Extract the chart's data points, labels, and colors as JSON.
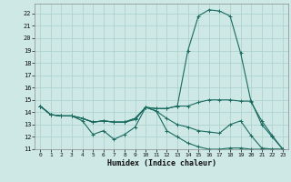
{
  "xlabel": "Humidex (Indice chaleur)",
  "background_color": "#cde8e5",
  "grid_color": "#aacfcc",
  "line_color": "#1a6b60",
  "xlim": [
    -0.5,
    23.5
  ],
  "ylim": [
    11,
    22.8
  ],
  "yticks": [
    11,
    12,
    13,
    14,
    15,
    16,
    17,
    18,
    19,
    20,
    21,
    22
  ],
  "xticks": [
    0,
    1,
    2,
    3,
    4,
    5,
    6,
    7,
    8,
    9,
    10,
    11,
    12,
    13,
    14,
    15,
    16,
    17,
    18,
    19,
    20,
    21,
    22,
    23
  ],
  "series": [
    [
      14.5,
      13.8,
      13.7,
      13.7,
      13.3,
      12.2,
      12.5,
      11.8,
      12.2,
      12.8,
      14.4,
      14.1,
      12.5,
      12.0,
      11.5,
      11.2,
      11.0,
      11.0,
      11.1,
      11.1,
      11.0,
      11.0,
      11.0,
      11.0
    ],
    [
      14.5,
      13.8,
      13.7,
      13.7,
      13.5,
      13.2,
      13.3,
      13.2,
      13.2,
      13.4,
      14.4,
      14.1,
      13.5,
      13.0,
      12.8,
      12.5,
      12.4,
      12.3,
      13.0,
      13.3,
      12.1,
      11.1,
      11.0,
      11.0
    ],
    [
      14.5,
      13.8,
      13.7,
      13.7,
      13.5,
      13.2,
      13.3,
      13.2,
      13.2,
      13.5,
      14.4,
      14.3,
      14.3,
      14.5,
      14.5,
      14.8,
      15.0,
      15.0,
      15.0,
      14.9,
      14.9,
      13.0,
      12.0,
      11.0
    ],
    [
      14.5,
      13.8,
      13.7,
      13.7,
      13.5,
      13.2,
      13.3,
      13.2,
      13.2,
      13.5,
      14.4,
      14.3,
      14.3,
      14.5,
      19.0,
      21.8,
      22.3,
      22.2,
      21.8,
      18.8,
      14.8,
      13.3,
      12.1,
      11.0
    ]
  ]
}
